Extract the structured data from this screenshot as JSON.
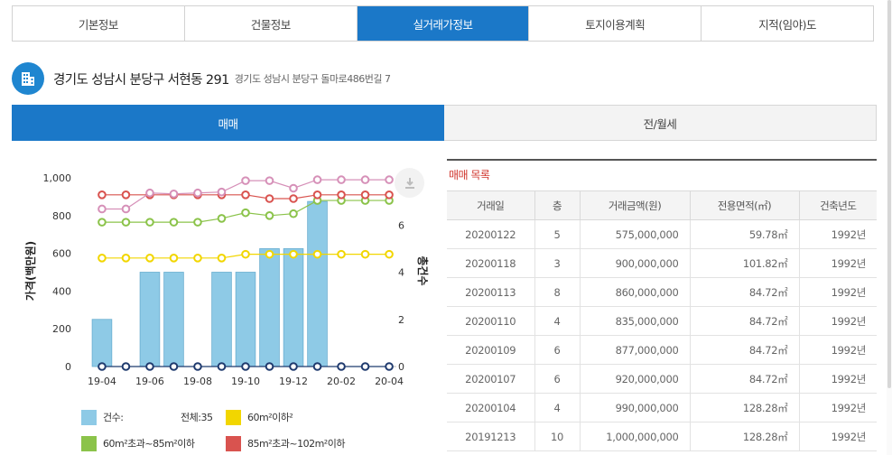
{
  "top_tabs": [
    {
      "label": "기본정보"
    },
    {
      "label": "건물정보"
    },
    {
      "label": "실거래가정보"
    },
    {
      "label": "토지이용계획"
    },
    {
      "label": "지적(임야)도"
    }
  ],
  "active_top_tab": 2,
  "address": {
    "main": "경기도 성남시 분당구 서현동 291",
    "road": "경기도 성남시 분당구 돌마로486번길 7",
    "icon": "building-icon"
  },
  "sub_tabs": [
    {
      "label": "매매"
    },
    {
      "label": "전/월세"
    }
  ],
  "active_sub_tab": 0,
  "chart": {
    "ylabel_left": "가격(백만원)",
    "ylabel_right": "총건수",
    "download_icon": "download-icon"
  },
  "chart_data": {
    "type": "bar",
    "ylabel": "가격(백만원)",
    "ylabel_right": "총건수",
    "ylim": [
      0,
      1000
    ],
    "ylim_right": [
      0,
      8
    ],
    "yticks": [
      "0",
      "200",
      "400",
      "600",
      "800",
      "1,000"
    ],
    "yticks_right": [
      "0",
      "2",
      "4",
      "6",
      "8"
    ],
    "xtick_labels": [
      "19-04",
      "19-06",
      "19-08",
      "19-10",
      "19-12",
      "20-02",
      "20-04"
    ],
    "categories": [
      "19-04",
      "19-05",
      "19-06",
      "19-07",
      "19-08",
      "19-09",
      "19-10",
      "19-11",
      "19-12",
      "20-01",
      "20-02",
      "20-03",
      "20-04"
    ],
    "bars": {
      "name": "건수",
      "axis": "right",
      "color": "#8ecae6",
      "values": [
        2,
        0,
        4,
        4,
        0,
        4,
        4,
        5,
        5,
        7,
        0,
        0,
        0
      ]
    },
    "series": [
      {
        "name": "60m²이하²",
        "color": "#f2d600",
        "values": [
          575,
          575,
          575,
          575,
          575,
          575,
          595,
          595,
          595,
          595,
          595,
          595,
          595
        ]
      },
      {
        "name": "60m²초과~85m²이하",
        "color": "#8bc34a",
        "values": [
          765,
          765,
          765,
          765,
          765,
          785,
          815,
          800,
          810,
          880,
          880,
          880,
          880
        ]
      },
      {
        "name": "85m²초과~102m²이하",
        "color": "#d9534f",
        "values": [
          910,
          910,
          910,
          910,
          910,
          910,
          910,
          890,
          890,
          910,
          910,
          910,
          910
        ]
      },
      {
        "name": "",
        "color": "#d690b8",
        "values": [
          835,
          835,
          920,
          915,
          920,
          925,
          985,
          985,
          945,
          990,
          990,
          990,
          990
        ]
      },
      {
        "name": "",
        "color": "#1f3a6e",
        "values": [
          0,
          0,
          0,
          0,
          0,
          0,
          0,
          0,
          0,
          0,
          0,
          0,
          0
        ]
      }
    ]
  },
  "legend": {
    "count_label": "건수:",
    "total_label": "전체:35",
    "s1": "60m²이하²",
    "s2": "60m²초과~85m²이하",
    "s3": "85m²초과~102m²이하",
    "color_count": "#8ecae6",
    "color_s1": "#f2d600",
    "color_s2": "#8bc34a",
    "color_s3": "#d9534f"
  },
  "trades": {
    "title": "매매 목록",
    "headers": [
      "거래일",
      "층",
      "거래금액(원)",
      "전용면적(㎡)",
      "건축년도"
    ],
    "rows": [
      [
        "20200122",
        "5",
        "575,000,000",
        "59.78㎡",
        "1992년"
      ],
      [
        "20200118",
        "3",
        "900,000,000",
        "101.82㎡",
        "1992년"
      ],
      [
        "20200113",
        "8",
        "860,000,000",
        "84.72㎡",
        "1992년"
      ],
      [
        "20200110",
        "4",
        "835,000,000",
        "84.72㎡",
        "1992년"
      ],
      [
        "20200109",
        "6",
        "877,000,000",
        "84.72㎡",
        "1992년"
      ],
      [
        "20200107",
        "6",
        "920,000,000",
        "84.72㎡",
        "1992년"
      ],
      [
        "20200104",
        "4",
        "990,000,000",
        "128.28㎡",
        "1992년"
      ],
      [
        "20191213",
        "10",
        "1,000,000,000",
        "128.28㎡",
        "1992년"
      ]
    ]
  }
}
